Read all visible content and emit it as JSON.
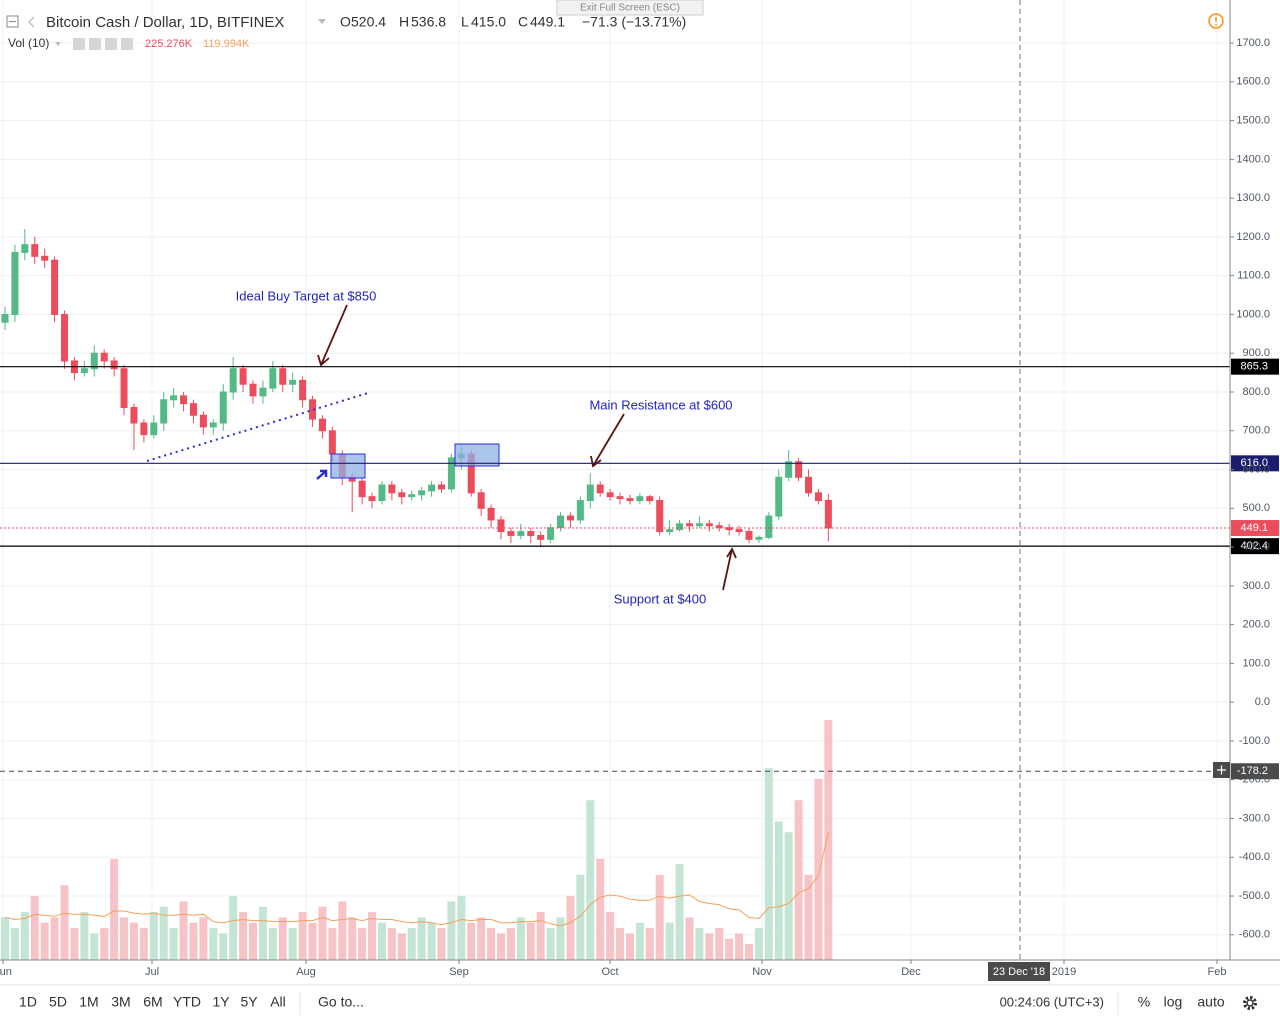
{
  "chart_data": {
    "type": "candlestick",
    "title": "Bitcoin Cash / Dollar, 1D, BITFINEX",
    "legend": {
      "open_label": "O",
      "open": 520.4,
      "high_label": "H",
      "high": 536.8,
      "low_label": "L",
      "low": {
        "value": 415,
        "label": "415.0"
      },
      "close_label": "C",
      "close": 449.1,
      "change": "−71.3 (−13.71%)"
    },
    "volume_legend": {
      "name": "Vol (10)",
      "volume": {
        "value": 225.276,
        "label": "225.276K"
      },
      "ma": {
        "value": 119.994,
        "label": "119.994K"
      }
    },
    "exit_hint": "Exit Full Screen (ESC)",
    "up_color": "#53b987",
    "down_color": "#eb4d5c",
    "volume_up_color": "#c4e5d3",
    "volume_down_color": "#f6c3c7",
    "volume_ma_color": "#f5a05a",
    "open": [
      980,
      1000,
      1160,
      1180,
      1150,
      1140,
      1000,
      880,
      850,
      860,
      900,
      880,
      860,
      760,
      720,
      690,
      720,
      780,
      790,
      770,
      740,
      710,
      720,
      800,
      860,
      820,
      790,
      810,
      860,
      820,
      830,
      780,
      730,
      700,
      640,
      580,
      570,
      530,
      520,
      560,
      540,
      530,
      535,
      545,
      560,
      550,
      630,
      640,
      540,
      500,
      470,
      440,
      430,
      440,
      430,
      420,
      450,
      480,
      470,
      520,
      560,
      540,
      530,
      525,
      520,
      530,
      520,
      440,
      445,
      460,
      455,
      460,
      455,
      450,
      445,
      440,
      420,
      425,
      480,
      580,
      620,
      580,
      540,
      520.4
    ],
    "high": [
      1020,
      1180,
      1220,
      1200,
      1170,
      1150,
      1010,
      890,
      880,
      920,
      910,
      890,
      870,
      770,
      730,
      740,
      800,
      810,
      800,
      780,
      750,
      730,
      820,
      890,
      870,
      830,
      830,
      880,
      870,
      850,
      840,
      790,
      740,
      710,
      650,
      590,
      580,
      540,
      570,
      570,
      550,
      545,
      555,
      570,
      570,
      640,
      660,
      650,
      550,
      510,
      480,
      450,
      460,
      450,
      440,
      460,
      490,
      490,
      530,
      590,
      570,
      550,
      540,
      535,
      540,
      535,
      530,
      470,
      470,
      470,
      480,
      470,
      465,
      460,
      455,
      450,
      430,
      490,
      600,
      650,
      630,
      600,
      550,
      536.8
    ],
    "low": [
      960,
      980,
      1140,
      1130,
      1120,
      980,
      860,
      830,
      840,
      840,
      860,
      840,
      740,
      650,
      670,
      680,
      700,
      760,
      750,
      720,
      690,
      690,
      700,
      780,
      800,
      770,
      770,
      800,
      800,
      800,
      760,
      710,
      680,
      620,
      560,
      490,
      510,
      500,
      510,
      520,
      510,
      520,
      520,
      530,
      540,
      540,
      600,
      530,
      480,
      450,
      420,
      410,
      420,
      410,
      400,
      410,
      440,
      450,
      460,
      500,
      530,
      520,
      510,
      510,
      510,
      510,
      430,
      430,
      440,
      440,
      450,
      440,
      440,
      430,
      430,
      410,
      410,
      420,
      470,
      570,
      570,
      530,
      510,
      415
    ],
    "close": [
      1000,
      1160,
      1180,
      1150,
      1140,
      1000,
      880,
      850,
      860,
      900,
      880,
      860,
      760,
      720,
      690,
      720,
      780,
      790,
      770,
      740,
      710,
      720,
      800,
      860,
      820,
      790,
      810,
      860,
      820,
      830,
      780,
      730,
      700,
      640,
      580,
      570,
      530,
      520,
      560,
      540,
      530,
      535,
      545,
      560,
      550,
      630,
      640,
      540,
      500,
      470,
      440,
      430,
      440,
      430,
      420,
      450,
      480,
      470,
      520,
      560,
      540,
      530,
      525,
      520,
      530,
      520,
      440,
      445,
      460,
      455,
      460,
      455,
      450,
      445,
      440,
      420,
      425,
      480,
      580,
      620,
      580,
      540,
      520,
      449.1
    ],
    "volume": [
      40,
      30,
      45,
      60,
      35,
      40,
      70,
      30,
      45,
      25,
      30,
      95,
      40,
      35,
      30,
      45,
      50,
      30,
      55,
      35,
      40,
      30,
      25,
      60,
      45,
      35,
      50,
      30,
      40,
      30,
      45,
      35,
      50,
      30,
      55,
      40,
      30,
      45,
      35,
      30,
      25,
      30,
      40,
      35,
      30,
      55,
      60,
      35,
      40,
      30,
      25,
      30,
      40,
      35,
      45,
      30,
      40,
      60,
      80,
      150,
      95,
      45,
      30,
      25,
      35,
      30,
      80,
      35,
      90,
      40,
      30,
      25,
      30,
      20,
      25,
      15,
      30,
      180,
      130,
      120,
      150,
      80,
      170,
      225.276
    ],
    "volume_ma": [
      40,
      38,
      39,
      43,
      42,
      41,
      44,
      43,
      43,
      42,
      41,
      46,
      46,
      44,
      43,
      44,
      42,
      42,
      43,
      42,
      43,
      36,
      35,
      37,
      38,
      37,
      37,
      36,
      36,
      36,
      37,
      37,
      40,
      37,
      38,
      39,
      37,
      39,
      38,
      38,
      36,
      35,
      36,
      35,
      33,
      35,
      38,
      37,
      38,
      38,
      35,
      35,
      36,
      36,
      37,
      34,
      32,
      35,
      41,
      52,
      59,
      61,
      60,
      57,
      56,
      56,
      60,
      58,
      60,
      61,
      55,
      53,
      52,
      48,
      47,
      40,
      39,
      49,
      50,
      53,
      63,
      67,
      79,
      119.994
    ],
    "xticks": [
      "Jun",
      "Jul",
      "Aug",
      "Sep",
      "Oct",
      "Nov",
      "Dec",
      "2019",
      "Feb"
    ],
    "crosshair_x_label": "23 Dec '18",
    "ylim": [
      -665,
      1811
    ],
    "yticks": [
      {
        "value": 1700,
        "label": "1700.0"
      },
      {
        "value": 1600,
        "label": "1600.0"
      },
      {
        "value": 1500,
        "label": "1500.0"
      },
      {
        "value": 1400,
        "label": "1400.0"
      },
      {
        "value": 1300,
        "label": "1300.0"
      },
      {
        "value": 1200,
        "label": "1200.0"
      },
      {
        "value": 1100,
        "label": "1100.0"
      },
      {
        "value": 1000,
        "label": "1000.0"
      },
      {
        "value": 900,
        "label": "900.0"
      },
      {
        "value": 800,
        "label": "800.0"
      },
      {
        "value": 700,
        "label": "700.0"
      },
      {
        "value": 600,
        "label": "600.0"
      },
      {
        "value": 500,
        "label": "500.0"
      },
      {
        "value": 400,
        "label": "400.0"
      },
      {
        "value": 300,
        "label": "300.0"
      },
      {
        "value": 200,
        "label": "200.0"
      },
      {
        "value": 100,
        "label": "100.0"
      },
      {
        "value": 0,
        "label": "0.0"
      },
      {
        "value": -100,
        "label": "-100.0"
      },
      {
        "value": -200,
        "label": "-200.0"
      },
      {
        "value": -300,
        "label": "-300.0"
      },
      {
        "value": -400,
        "label": "-400.0"
      },
      {
        "value": -500,
        "label": "-500.0"
      },
      {
        "value": -600,
        "label": "-600.0"
      }
    ],
    "grid": true,
    "price_lines": [
      {
        "value": 865.3,
        "label": "865.3",
        "color": "#000000",
        "style": "solid"
      },
      {
        "value": 616,
        "label": "616.0",
        "color": "#1c1c6e",
        "style": "solid"
      },
      {
        "value": 449.1,
        "label": "449.1",
        "color": "#eb4d5c",
        "style": "dotted"
      },
      {
        "value": 402.4,
        "label": "402.4",
        "color": "#000000",
        "style": "solid"
      },
      {
        "value": -178.2,
        "label": "-178.2",
        "color": "#4a4a4a",
        "style": "dashed"
      }
    ],
    "annotations": [
      "Ideal Buy Target at $850",
      "Main Resistance at $600",
      "Support at $400"
    ]
  },
  "toolbar": {
    "ranges": [
      "1D",
      "5D",
      "1M",
      "3M",
      "6M",
      "YTD",
      "1Y",
      "5Y",
      "All"
    ],
    "goto": "Go to...",
    "clock": "00:24:06 (UTC+3)",
    "options": [
      "%",
      "log",
      "auto"
    ]
  }
}
